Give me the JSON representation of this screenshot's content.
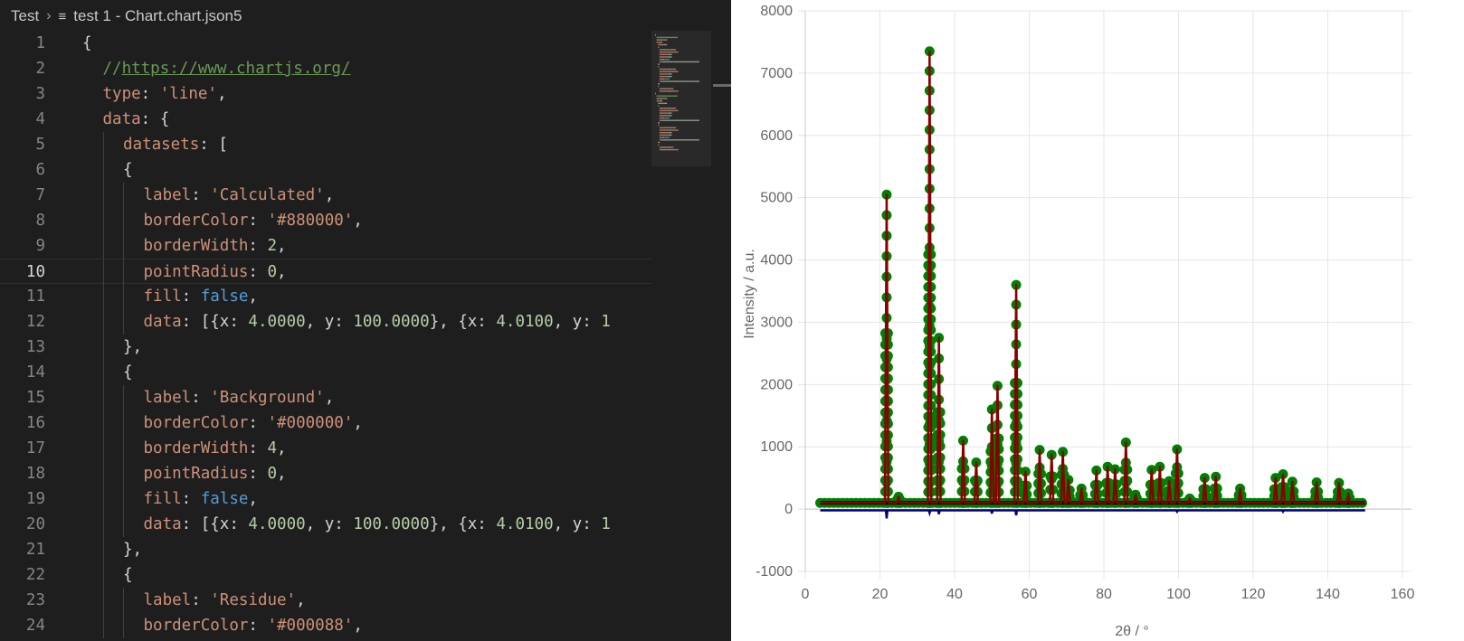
{
  "breadcrumb": {
    "folder": "Test",
    "file": "test 1 - Chart.chart.json5"
  },
  "editor": {
    "active_line": 10,
    "lines": [
      {
        "n": "1",
        "indent": 0,
        "tokens": [
          {
            "t": "{",
            "c": "p"
          }
        ]
      },
      {
        "n": "2",
        "indent": 1,
        "tokens": [
          {
            "t": "//",
            "c": "com"
          },
          {
            "t": "https://www.chartjs.org/",
            "c": "lnk"
          }
        ]
      },
      {
        "n": "3",
        "indent": 1,
        "tokens": [
          {
            "t": "type",
            "c": "key"
          },
          {
            "t": ": ",
            "c": "p"
          },
          {
            "t": "'line'",
            "c": "str"
          },
          {
            "t": ",",
            "c": "p"
          }
        ]
      },
      {
        "n": "4",
        "indent": 1,
        "tokens": [
          {
            "t": "data",
            "c": "key"
          },
          {
            "t": ": {",
            "c": "p"
          }
        ]
      },
      {
        "n": "5",
        "indent": 2,
        "tokens": [
          {
            "t": "datasets",
            "c": "key"
          },
          {
            "t": ": [",
            "c": "p"
          }
        ]
      },
      {
        "n": "6",
        "indent": 2,
        "tokens": [
          {
            "t": "{",
            "c": "p"
          }
        ]
      },
      {
        "n": "7",
        "indent": 3,
        "tokens": [
          {
            "t": "label",
            "c": "key"
          },
          {
            "t": ": ",
            "c": "p"
          },
          {
            "t": "'Calculated'",
            "c": "str"
          },
          {
            "t": ",",
            "c": "p"
          }
        ]
      },
      {
        "n": "8",
        "indent": 3,
        "tokens": [
          {
            "t": "borderColor",
            "c": "key"
          },
          {
            "t": ": ",
            "c": "p"
          },
          {
            "t": "'#880000'",
            "c": "str"
          },
          {
            "t": ",",
            "c": "p"
          }
        ]
      },
      {
        "n": "9",
        "indent": 3,
        "tokens": [
          {
            "t": "borderWidth",
            "c": "key"
          },
          {
            "t": ": ",
            "c": "p"
          },
          {
            "t": "2",
            "c": "num"
          },
          {
            "t": ",",
            "c": "p"
          }
        ]
      },
      {
        "n": "10",
        "indent": 3,
        "tokens": [
          {
            "t": "pointRadius",
            "c": "key"
          },
          {
            "t": ": ",
            "c": "p"
          },
          {
            "t": "0",
            "c": "num"
          },
          {
            "t": ",",
            "c": "p"
          }
        ]
      },
      {
        "n": "11",
        "indent": 3,
        "tokens": [
          {
            "t": "fill",
            "c": "key"
          },
          {
            "t": ": ",
            "c": "p"
          },
          {
            "t": "false",
            "c": "kw"
          },
          {
            "t": ",",
            "c": "p"
          }
        ]
      },
      {
        "n": "12",
        "indent": 3,
        "tokens": [
          {
            "t": "data",
            "c": "key"
          },
          {
            "t": ": [{x: ",
            "c": "p"
          },
          {
            "t": "4.0000",
            "c": "num"
          },
          {
            "t": ", y: ",
            "c": "p"
          },
          {
            "t": "100.0000",
            "c": "num"
          },
          {
            "t": "}, {x: ",
            "c": "p"
          },
          {
            "t": "4.0100",
            "c": "num"
          },
          {
            "t": ", y: ",
            "c": "p"
          },
          {
            "t": "1",
            "c": "num"
          }
        ]
      },
      {
        "n": "13",
        "indent": 2,
        "tokens": [
          {
            "t": "},",
            "c": "p"
          }
        ]
      },
      {
        "n": "14",
        "indent": 2,
        "tokens": [
          {
            "t": "{",
            "c": "p"
          }
        ]
      },
      {
        "n": "15",
        "indent": 3,
        "tokens": [
          {
            "t": "label",
            "c": "key"
          },
          {
            "t": ": ",
            "c": "p"
          },
          {
            "t": "'Background'",
            "c": "str"
          },
          {
            "t": ",",
            "c": "p"
          }
        ]
      },
      {
        "n": "16",
        "indent": 3,
        "tokens": [
          {
            "t": "borderColor",
            "c": "key"
          },
          {
            "t": ": ",
            "c": "p"
          },
          {
            "t": "'#000000'",
            "c": "str"
          },
          {
            "t": ",",
            "c": "p"
          }
        ]
      },
      {
        "n": "17",
        "indent": 3,
        "tokens": [
          {
            "t": "borderWidth",
            "c": "key"
          },
          {
            "t": ": ",
            "c": "p"
          },
          {
            "t": "4",
            "c": "num"
          },
          {
            "t": ",",
            "c": "p"
          }
        ]
      },
      {
        "n": "18",
        "indent": 3,
        "tokens": [
          {
            "t": "pointRadius",
            "c": "key"
          },
          {
            "t": ": ",
            "c": "p"
          },
          {
            "t": "0",
            "c": "num"
          },
          {
            "t": ",",
            "c": "p"
          }
        ]
      },
      {
        "n": "19",
        "indent": 3,
        "tokens": [
          {
            "t": "fill",
            "c": "key"
          },
          {
            "t": ": ",
            "c": "p"
          },
          {
            "t": "false",
            "c": "kw"
          },
          {
            "t": ",",
            "c": "p"
          }
        ]
      },
      {
        "n": "20",
        "indent": 3,
        "tokens": [
          {
            "t": "data",
            "c": "key"
          },
          {
            "t": ": [{x: ",
            "c": "p"
          },
          {
            "t": "4.0000",
            "c": "num"
          },
          {
            "t": ", y: ",
            "c": "p"
          },
          {
            "t": "100.0000",
            "c": "num"
          },
          {
            "t": "}, {x: ",
            "c": "p"
          },
          {
            "t": "4.0100",
            "c": "num"
          },
          {
            "t": ", y: ",
            "c": "p"
          },
          {
            "t": "1",
            "c": "num"
          }
        ]
      },
      {
        "n": "21",
        "indent": 2,
        "tokens": [
          {
            "t": "},",
            "c": "p"
          }
        ]
      },
      {
        "n": "22",
        "indent": 2,
        "tokens": [
          {
            "t": "{",
            "c": "p"
          }
        ]
      },
      {
        "n": "23",
        "indent": 3,
        "tokens": [
          {
            "t": "label",
            "c": "key"
          },
          {
            "t": ": ",
            "c": "p"
          },
          {
            "t": "'Residue'",
            "c": "str"
          },
          {
            "t": ",",
            "c": "p"
          }
        ]
      },
      {
        "n": "24",
        "indent": 3,
        "tokens": [
          {
            "t": "borderColor",
            "c": "key"
          },
          {
            "t": ": ",
            "c": "p"
          },
          {
            "t": "'#000088'",
            "c": "str"
          },
          {
            "t": ",",
            "c": "p"
          }
        ]
      }
    ]
  },
  "chart_data": {
    "type": "line",
    "xlabel": "2θ / °",
    "ylabel": "Intensity / a.u.",
    "xlim": [
      0,
      160
    ],
    "ylim": [
      -1000,
      8000
    ],
    "x_ticks": [
      0,
      20,
      40,
      60,
      80,
      100,
      120,
      140,
      160
    ],
    "y_ticks": [
      -1000,
      0,
      1000,
      2000,
      3000,
      4000,
      5000,
      6000,
      7000,
      8000
    ],
    "grid": true,
    "baseline": 100,
    "x_start": 4,
    "x_end": 150,
    "colors": {
      "calculated": "#880000",
      "background": "#000000",
      "residue": "#000088",
      "observed": "#008000"
    },
    "peaks": [
      [
        21.8,
        5050
      ],
      [
        25.0,
        200
      ],
      [
        33.3,
        7350
      ],
      [
        35.8,
        2750
      ],
      [
        42.3,
        1100
      ],
      [
        45.8,
        750
      ],
      [
        50.0,
        1600
      ],
      [
        51.5,
        1980
      ],
      [
        56.5,
        3600
      ],
      [
        59.0,
        600
      ],
      [
        62.8,
        950
      ],
      [
        66.0,
        870
      ],
      [
        69.0,
        920
      ],
      [
        70.5,
        470
      ],
      [
        74.0,
        330
      ],
      [
        78.0,
        620
      ],
      [
        81.0,
        680
      ],
      [
        83.0,
        640
      ],
      [
        85.9,
        1070
      ],
      [
        88.5,
        230
      ],
      [
        92.8,
        630
      ],
      [
        95.0,
        680
      ],
      [
        97.5,
        450
      ],
      [
        99.6,
        960
      ],
      [
        103.0,
        170
      ],
      [
        107.0,
        500
      ],
      [
        110.0,
        520
      ],
      [
        116.5,
        330
      ],
      [
        126.0,
        500
      ],
      [
        128.0,
        560
      ],
      [
        130.5,
        440
      ],
      [
        137.0,
        430
      ],
      [
        143.0,
        420
      ],
      [
        145.5,
        250
      ]
    ],
    "residue_dips": [
      [
        21.8,
        -150
      ],
      [
        33.3,
        -60
      ],
      [
        35.8,
        -80
      ],
      [
        50.0,
        -70
      ],
      [
        56.5,
        -100
      ],
      [
        99.6,
        -40
      ],
      [
        128.0,
        -40
      ]
    ]
  }
}
